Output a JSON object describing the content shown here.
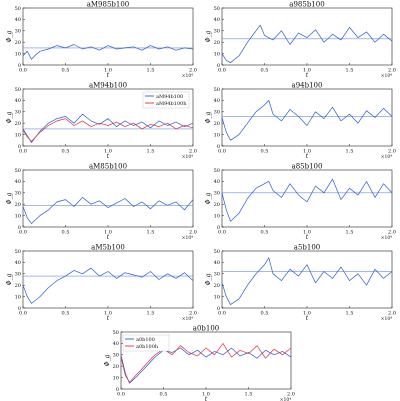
{
  "chart_data": [
    {
      "type": "line",
      "title": "aM985b100",
      "xlabel": "t",
      "ylabel": "Φ_g",
      "x_multiplier": "×10⁴",
      "xlim": [
        0,
        2.0
      ],
      "ylim": [
        0,
        50
      ],
      "xticks": [
        "0.0",
        "0.5",
        "1.0",
        "1.5",
        "2.0"
      ],
      "yticks": [
        "0",
        "10",
        "20",
        "30",
        "40",
        "50"
      ],
      "reference_line": 15,
      "series": [
        {
          "color": "#2a5bd7",
          "x": [
            0,
            0.05,
            0.1,
            0.15,
            0.2,
            0.3,
            0.4,
            0.5,
            0.6,
            0.7,
            0.8,
            0.9,
            1.0,
            1.1,
            1.2,
            1.3,
            1.4,
            1.5,
            1.6,
            1.7,
            1.8,
            1.9,
            2.0
          ],
          "y": [
            8,
            12,
            5,
            9,
            12,
            14,
            17,
            15,
            18,
            14,
            16,
            13,
            17,
            14,
            15,
            16,
            13,
            17,
            14,
            16,
            13,
            15,
            14
          ]
        }
      ]
    },
    {
      "type": "line",
      "title": "a985b100",
      "xlabel": "t",
      "ylabel": "Φ_g",
      "x_multiplier": "×10⁴",
      "xlim": [
        0,
        2.0
      ],
      "ylim": [
        0,
        50
      ],
      "xticks": [
        "0.0",
        "0.5",
        "1.0",
        "1.5",
        "2.0"
      ],
      "yticks": [
        "0",
        "10",
        "20",
        "30",
        "40",
        "50"
      ],
      "reference_line": 23,
      "series": [
        {
          "color": "#2a5bd7",
          "x": [
            0,
            0.05,
            0.1,
            0.2,
            0.3,
            0.4,
            0.45,
            0.5,
            0.6,
            0.7,
            0.8,
            0.9,
            1.0,
            1.1,
            1.2,
            1.3,
            1.4,
            1.5,
            1.6,
            1.7,
            1.8,
            1.9,
            2.0
          ],
          "y": [
            10,
            4,
            2,
            8,
            20,
            30,
            35,
            26,
            22,
            30,
            18,
            28,
            24,
            31,
            20,
            27,
            22,
            33,
            24,
            29,
            20,
            27,
            21
          ]
        }
      ]
    },
    {
      "type": "line",
      "title": "aM94b100",
      "xlabel": "t",
      "ylabel": "Φ_g",
      "x_multiplier": "×10⁴",
      "xlim": [
        0,
        2.0
      ],
      "ylim": [
        0,
        50
      ],
      "xticks": [
        "0.0",
        "0.5",
        "1.0",
        "1.5",
        "2.0"
      ],
      "yticks": [
        "0",
        "10",
        "20",
        "30",
        "40",
        "50"
      ],
      "reference_line": 15,
      "legend": "top-right",
      "series": [
        {
          "name": "aM94b100",
          "color": "#2a5bd7",
          "x": [
            0,
            0.05,
            0.1,
            0.2,
            0.3,
            0.4,
            0.5,
            0.6,
            0.7,
            0.8,
            0.9,
            1.0,
            1.1,
            1.2,
            1.3,
            1.4,
            1.5,
            1.6,
            1.7,
            1.8,
            1.9,
            2.0
          ],
          "y": [
            15,
            9,
            3,
            13,
            20,
            24,
            26,
            20,
            28,
            22,
            19,
            24,
            17,
            22,
            18,
            21,
            16,
            22,
            18,
            21,
            17,
            20
          ]
        },
        {
          "name": "aM94b100h",
          "color": "#e0303a",
          "x": [
            0,
            0.05,
            0.1,
            0.2,
            0.3,
            0.4,
            0.5,
            0.6,
            0.7,
            0.8,
            0.9,
            1.0,
            1.1,
            1.2,
            1.3,
            1.4,
            1.5,
            1.6,
            1.7,
            1.8,
            1.9,
            2.0
          ],
          "y": [
            14,
            8,
            4,
            12,
            18,
            22,
            24,
            18,
            22,
            17,
            20,
            18,
            21,
            17,
            20,
            15,
            19,
            17,
            20,
            15,
            18,
            16
          ]
        }
      ]
    },
    {
      "type": "line",
      "title": "a94b100",
      "xlabel": "t",
      "ylabel": "Φ_g",
      "x_multiplier": "×10⁴",
      "xlim": [
        0,
        2.0
      ],
      "ylim": [
        0,
        50
      ],
      "xticks": [
        "0.0",
        "0.5",
        "1.0",
        "1.5",
        "2.0"
      ],
      "yticks": [
        "0",
        "10",
        "20",
        "30",
        "40",
        "50"
      ],
      "reference_line": 26,
      "series": [
        {
          "color": "#2a5bd7",
          "x": [
            0,
            0.05,
            0.1,
            0.2,
            0.3,
            0.4,
            0.5,
            0.55,
            0.6,
            0.7,
            0.8,
            0.9,
            1.0,
            1.1,
            1.2,
            1.3,
            1.4,
            1.5,
            1.6,
            1.7,
            1.8,
            1.9,
            2.0
          ],
          "y": [
            25,
            12,
            5,
            10,
            20,
            30,
            36,
            40,
            28,
            22,
            32,
            26,
            18,
            30,
            24,
            34,
            22,
            28,
            20,
            31,
            25,
            33,
            26
          ]
        }
      ]
    },
    {
      "type": "line",
      "title": "aM85b100",
      "xlabel": "t",
      "ylabel": "Φ_g",
      "x_multiplier": "×10⁴",
      "xlim": [
        0,
        2.0
      ],
      "ylim": [
        0,
        50
      ],
      "xticks": [
        "0.0",
        "0.5",
        "1.0",
        "1.5",
        "2.0"
      ],
      "yticks": [
        "0",
        "10",
        "20",
        "30",
        "40",
        "50"
      ],
      "reference_line": 19,
      "series": [
        {
          "color": "#2a5bd7",
          "x": [
            0,
            0.05,
            0.1,
            0.2,
            0.3,
            0.4,
            0.5,
            0.6,
            0.7,
            0.8,
            0.9,
            1.0,
            1.1,
            1.2,
            1.3,
            1.4,
            1.5,
            1.6,
            1.7,
            1.8,
            1.9,
            2.0
          ],
          "y": [
            18,
            8,
            3,
            10,
            15,
            22,
            24,
            18,
            26,
            20,
            23,
            17,
            21,
            25,
            18,
            22,
            16,
            23,
            19,
            22,
            15,
            24
          ]
        }
      ]
    },
    {
      "type": "line",
      "title": "a85b100",
      "xlabel": "t",
      "ylabel": "Φ_g",
      "x_multiplier": "×10⁴",
      "xlim": [
        0,
        2.0
      ],
      "ylim": [
        0,
        50
      ],
      "xticks": [
        "0.0",
        "0.5",
        "1.0",
        "1.5",
        "2.0"
      ],
      "yticks": [
        "0",
        "10",
        "20",
        "30",
        "40",
        "50"
      ],
      "reference_line": 30,
      "series": [
        {
          "color": "#2a5bd7",
          "x": [
            0,
            0.05,
            0.1,
            0.2,
            0.3,
            0.4,
            0.5,
            0.55,
            0.6,
            0.7,
            0.8,
            0.9,
            1.0,
            1.1,
            1.2,
            1.3,
            1.4,
            1.5,
            1.6,
            1.7,
            1.8,
            1.9,
            2.0
          ],
          "y": [
            30,
            15,
            5,
            12,
            25,
            34,
            38,
            40,
            32,
            26,
            38,
            28,
            22,
            36,
            30,
            42,
            24,
            34,
            28,
            40,
            26,
            38,
            30
          ]
        }
      ]
    },
    {
      "type": "line",
      "title": "aM5b100",
      "xlabel": "t",
      "ylabel": "Φ_g",
      "x_multiplier": "×10⁴",
      "xlim": [
        0,
        2.0
      ],
      "ylim": [
        0,
        50
      ],
      "xticks": [
        "0.0",
        "0.5",
        "1.0",
        "1.5",
        "2.0"
      ],
      "yticks": [
        "0",
        "10",
        "20",
        "30",
        "40",
        "50"
      ],
      "reference_line": 28,
      "series": [
        {
          "color": "#2a5bd7",
          "x": [
            0,
            0.05,
            0.1,
            0.2,
            0.3,
            0.4,
            0.5,
            0.6,
            0.7,
            0.8,
            0.9,
            1.0,
            1.1,
            1.2,
            1.3,
            1.4,
            1.5,
            1.6,
            1.7,
            1.8,
            1.9,
            2.0
          ],
          "y": [
            20,
            10,
            4,
            10,
            18,
            24,
            28,
            33,
            30,
            35,
            28,
            32,
            26,
            31,
            29,
            27,
            32,
            25,
            30,
            26,
            31,
            24
          ]
        }
      ]
    },
    {
      "type": "line",
      "title": "a5b100",
      "xlabel": "t",
      "ylabel": "Φ_g",
      "x_multiplier": "×10⁴",
      "xlim": [
        0,
        2.0
      ],
      "ylim": [
        0,
        50
      ],
      "xticks": [
        "0.0",
        "0.5",
        "1.0",
        "1.5",
        "2.0"
      ],
      "yticks": [
        "0",
        "10",
        "20",
        "30",
        "40",
        "50"
      ],
      "reference_line": 32,
      "series": [
        {
          "color": "#2a5bd7",
          "x": [
            0,
            0.05,
            0.1,
            0.2,
            0.3,
            0.4,
            0.5,
            0.55,
            0.6,
            0.7,
            0.8,
            0.9,
            1.0,
            1.1,
            1.2,
            1.3,
            1.4,
            1.5,
            1.6,
            1.7,
            1.8,
            1.9,
            2.0
          ],
          "y": [
            22,
            10,
            3,
            8,
            20,
            30,
            38,
            44,
            30,
            24,
            34,
            28,
            38,
            22,
            32,
            26,
            36,
            24,
            30,
            20,
            34,
            26,
            32
          ]
        }
      ]
    },
    {
      "type": "line",
      "title": "a0b100",
      "xlabel": "t",
      "ylabel": "Φ_g",
      "x_multiplier": "×10⁴",
      "xlim": [
        0,
        2.0
      ],
      "ylim": [
        0,
        50
      ],
      "xticks": [
        "0.0",
        "0.5",
        "1.0",
        "1.5",
        "2.0"
      ],
      "yticks": [
        "0",
        "10",
        "20",
        "30",
        "40",
        "50"
      ],
      "reference_line": null,
      "legend": "top-left",
      "series": [
        {
          "name": "a0b100",
          "color": "#2a5bd7",
          "x": [
            0,
            0.05,
            0.1,
            0.2,
            0.3,
            0.4,
            0.5,
            0.6,
            0.7,
            0.8,
            0.9,
            1.0,
            1.1,
            1.2,
            1.3,
            1.4,
            1.5,
            1.6,
            1.7,
            1.8,
            1.9,
            2.0
          ],
          "y": [
            30,
            14,
            5,
            12,
            20,
            28,
            34,
            32,
            36,
            30,
            34,
            28,
            33,
            30,
            36,
            29,
            32,
            27,
            34,
            30,
            33,
            28
          ]
        },
        {
          "name": "a0b100h",
          "color": "#e0303a",
          "x": [
            0,
            0.05,
            0.1,
            0.2,
            0.3,
            0.4,
            0.5,
            0.6,
            0.7,
            0.8,
            0.9,
            1.0,
            1.1,
            1.2,
            1.3,
            1.4,
            1.5,
            1.6,
            1.7,
            1.8,
            1.9,
            2.0
          ],
          "y": [
            28,
            12,
            6,
            14,
            22,
            30,
            35,
            30,
            38,
            32,
            29,
            36,
            30,
            40,
            28,
            34,
            31,
            38,
            27,
            35,
            30,
            36
          ]
        }
      ]
    }
  ]
}
